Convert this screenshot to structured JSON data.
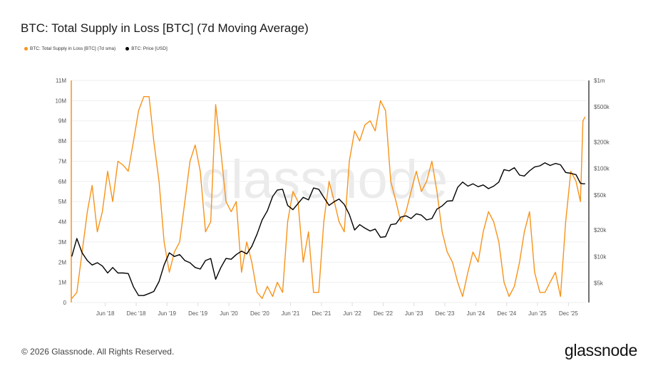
{
  "title": "BTC: Total Supply in Loss [BTC] (7d Moving Average)",
  "footer": {
    "copyright": "© 2026 Glassnode. All Rights Reserved.",
    "logo": "glassnode"
  },
  "watermark": "glassnode",
  "chart_data": {
    "type": "line",
    "title": "BTC: Total Supply in Loss [BTC] (7d Moving Average)",
    "legend_position": "top-left",
    "grid": true,
    "x_range": [
      "2017-11-12",
      "2026-03-15"
    ],
    "x_ticks": [
      {
        "date": "2018-06-01",
        "label": "Jun '18"
      },
      {
        "date": "2018-12-01",
        "label": "Dec '18"
      },
      {
        "date": "2019-06-01",
        "label": "Jun '19"
      },
      {
        "date": "2019-12-01",
        "label": "Dec '19"
      },
      {
        "date": "2020-06-01",
        "label": "Jun '20"
      },
      {
        "date": "2020-12-01",
        "label": "Dec '20"
      },
      {
        "date": "2021-06-01",
        "label": "Jun '21"
      },
      {
        "date": "2021-12-01",
        "label": "Dec '21"
      },
      {
        "date": "2022-06-01",
        "label": "Jun '22"
      },
      {
        "date": "2022-12-01",
        "label": "Dec '22"
      },
      {
        "date": "2023-06-01",
        "label": "Jun '23"
      },
      {
        "date": "2023-12-01",
        "label": "Dec '23"
      },
      {
        "date": "2024-06-01",
        "label": "Jun '24"
      },
      {
        "date": "2024-12-01",
        "label": "Dec '24"
      },
      {
        "date": "2025-06-01",
        "label": "Jun '25"
      },
      {
        "date": "2025-12-01",
        "label": "Dec '25"
      }
    ],
    "y_left": {
      "ylim": [
        0,
        11000000
      ],
      "scale": "linear",
      "color": "#f7931a",
      "ticks": [
        {
          "v": 0,
          "label": "0"
        },
        {
          "v": 1000000,
          "label": "1M"
        },
        {
          "v": 2000000,
          "label": "2M"
        },
        {
          "v": 3000000,
          "label": "3M"
        },
        {
          "v": 4000000,
          "label": "4M"
        },
        {
          "v": 5000000,
          "label": "5M"
        },
        {
          "v": 6000000,
          "label": "6M"
        },
        {
          "v": 7000000,
          "label": "7M"
        },
        {
          "v": 8000000,
          "label": "8M"
        },
        {
          "v": 9000000,
          "label": "9M"
        },
        {
          "v": 10000000,
          "label": "10M"
        },
        {
          "v": 11000000,
          "label": "11M"
        }
      ]
    },
    "y_right": {
      "ylim": [
        3000,
        1000000
      ],
      "scale": "log",
      "color": "#333333",
      "ticks": [
        {
          "v": 5000,
          "label": "$5k"
        },
        {
          "v": 10000,
          "label": "$10k"
        },
        {
          "v": 20000,
          "label": "$20k"
        },
        {
          "v": 50000,
          "label": "$50k"
        },
        {
          "v": 100000,
          "label": "$100k"
        },
        {
          "v": 200000,
          "label": "$200k"
        },
        {
          "v": 500000,
          "label": "$500k"
        },
        {
          "v": 1000000,
          "label": "$1m"
        }
      ]
    },
    "x": [
      "2017-11-15",
      "2017-12-15",
      "2018-01-15",
      "2018-02-15",
      "2018-03-15",
      "2018-04-15",
      "2018-05-15",
      "2018-06-15",
      "2018-07-15",
      "2018-08-15",
      "2018-09-15",
      "2018-10-15",
      "2018-11-15",
      "2018-12-15",
      "2019-01-15",
      "2019-02-15",
      "2019-03-15",
      "2019-04-15",
      "2019-05-15",
      "2019-06-15",
      "2019-07-15",
      "2019-08-15",
      "2019-09-15",
      "2019-10-15",
      "2019-11-15",
      "2019-12-15",
      "2020-01-15",
      "2020-02-15",
      "2020-03-15",
      "2020-04-15",
      "2020-05-15",
      "2020-06-15",
      "2020-07-15",
      "2020-08-15",
      "2020-09-15",
      "2020-10-15",
      "2020-11-15",
      "2020-12-15",
      "2021-01-15",
      "2021-02-15",
      "2021-03-15",
      "2021-04-15",
      "2021-05-15",
      "2021-06-15",
      "2021-07-15",
      "2021-08-15",
      "2021-09-15",
      "2021-10-15",
      "2021-11-15",
      "2021-12-15",
      "2022-01-15",
      "2022-02-15",
      "2022-03-15",
      "2022-04-15",
      "2022-05-15",
      "2022-06-15",
      "2022-07-15",
      "2022-08-15",
      "2022-09-15",
      "2022-10-15",
      "2022-11-15",
      "2022-12-15",
      "2023-01-15",
      "2023-02-15",
      "2023-03-15",
      "2023-04-15",
      "2023-05-15",
      "2023-06-15",
      "2023-07-15",
      "2023-08-15",
      "2023-09-15",
      "2023-10-15",
      "2023-11-15",
      "2023-12-15",
      "2024-01-15",
      "2024-02-15",
      "2024-03-15",
      "2024-04-15",
      "2024-05-15",
      "2024-06-15",
      "2024-07-15",
      "2024-08-15",
      "2024-09-15",
      "2024-10-15",
      "2024-11-15",
      "2024-12-15",
      "2025-01-15",
      "2025-02-15",
      "2025-03-15",
      "2025-04-15",
      "2025-05-15",
      "2025-06-15",
      "2025-07-15",
      "2025-08-15",
      "2025-09-15",
      "2025-10-15",
      "2025-11-15",
      "2025-12-15",
      "2026-01-15",
      "2026-02-10",
      "2026-02-25",
      "2026-03-10"
    ],
    "series": [
      {
        "name": "BTC: Total Supply in Loss [BTC] (7d sma)",
        "axis": "left",
        "color": "#f7931a",
        "values": [
          200000,
          500000,
          2500000,
          4500000,
          5800000,
          3500000,
          4500000,
          6500000,
          5000000,
          7000000,
          6800000,
          6500000,
          8000000,
          9500000,
          10200000,
          10200000,
          8000000,
          6000000,
          3000000,
          1500000,
          2500000,
          3000000,
          5000000,
          7000000,
          7800000,
          6500000,
          3500000,
          4000000,
          9800000,
          7500000,
          5000000,
          4500000,
          5000000,
          1500000,
          3000000,
          2000000,
          500000,
          200000,
          800000,
          300000,
          1000000,
          500000,
          4000000,
          5500000,
          5000000,
          2000000,
          3500000,
          500000,
          500000,
          4000000,
          6000000,
          5000000,
          4000000,
          3500000,
          7000000,
          8500000,
          8000000,
          8800000,
          9000000,
          8500000,
          10000000,
          9500000,
          6000000,
          5000000,
          4000000,
          4500000,
          5500000,
          6500000,
          5500000,
          6000000,
          7000000,
          5500000,
          3500000,
          2500000,
          2000000,
          1000000,
          300000,
          1500000,
          2500000,
          2000000,
          3500000,
          4500000,
          4000000,
          3000000,
          1000000,
          300000,
          800000,
          2000000,
          3500000,
          4500000,
          1500000,
          500000,
          500000,
          1000000,
          1500000,
          300000,
          4000000,
          6500000,
          6000000,
          5000000,
          9000000,
          9200000
        ]
      },
      {
        "name": "BTC: Price [USD]",
        "axis": "right",
        "color": "#000000",
        "values": [
          10000,
          16000,
          11000,
          9000,
          8000,
          8500,
          7800,
          6500,
          7500,
          6500,
          6500,
          6400,
          4500,
          3600,
          3600,
          3800,
          4000,
          5200,
          8000,
          11000,
          10000,
          10500,
          9000,
          8500,
          7500,
          7200,
          9000,
          9500,
          5500,
          7500,
          9500,
          9300,
          10500,
          11500,
          10700,
          13000,
          18000,
          26000,
          33000,
          48000,
          57000,
          58000,
          38000,
          34000,
          40000,
          47000,
          44000,
          60000,
          58000,
          47000,
          38000,
          42000,
          45000,
          39000,
          30000,
          20000,
          23000,
          21000,
          19500,
          20500,
          16500,
          16800,
          23000,
          23500,
          28000,
          29000,
          27000,
          30500,
          29500,
          26000,
          27000,
          34500,
          37500,
          42500,
          43000,
          61000,
          70000,
          63000,
          67000,
          62000,
          65000,
          59000,
          63000,
          70000,
          97000,
          94000,
          102000,
          84000,
          82000,
          94000,
          104000,
          107000,
          116000,
          108000,
          114000,
          110000,
          90000,
          88000,
          85000,
          68000,
          67000,
          67000
        ]
      }
    ]
  }
}
